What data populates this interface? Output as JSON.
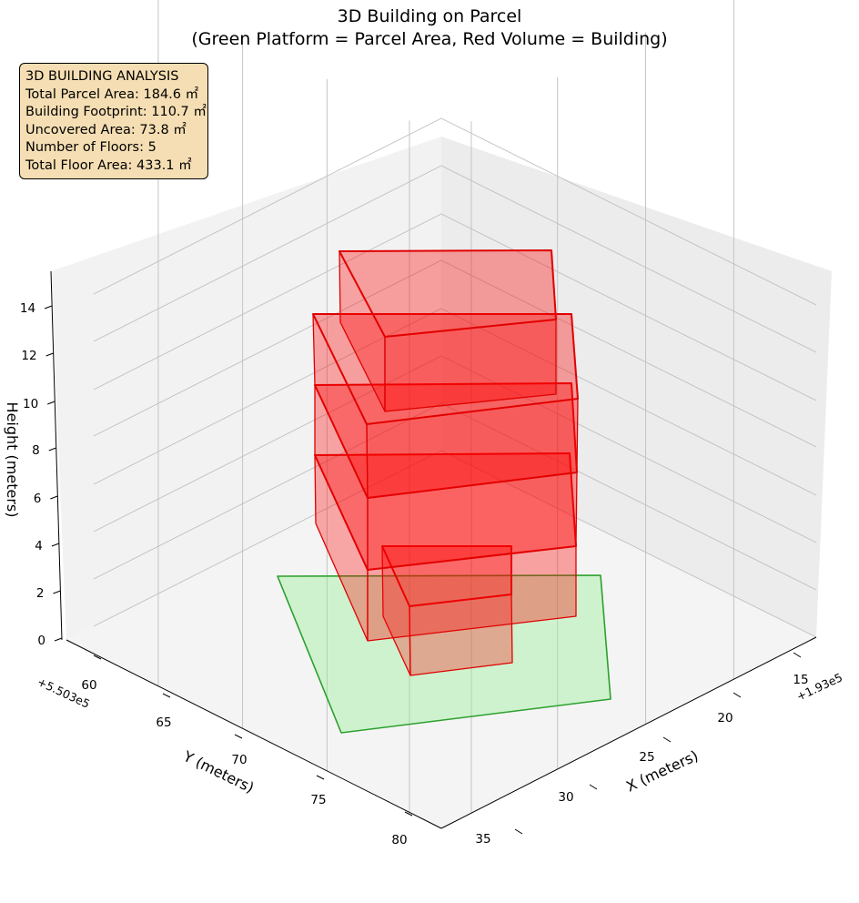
{
  "title_line1": "3D Building on Parcel",
  "title_line2": "(Green Platform = Parcel Area, Red Volume = Building)",
  "info_box": {
    "heading": "3D BUILDING ANALYSIS",
    "lines": [
      "Total Parcel Area: 184.6 ㎡",
      "Building Footprint: 110.7 ㎡",
      "Uncovered Area: 73.8 ㎡",
      "Number of Floors: 5",
      "Total Floor Area: 433.1 ㎡"
    ]
  },
  "colors": {
    "parcel_fill": "#90ee90",
    "parcel_edge": "#2ca02c",
    "building_fill": "#ff0000",
    "building_edge": "#e00000",
    "pane": "#f2f2f2",
    "grid": "#bfbfbf",
    "info_box_bg": "#f5deb3"
  },
  "chart_data": {
    "type": "3d-polygons",
    "xlabel": "X (meters)",
    "ylabel": "Y (meters)",
    "zlabel": "Height (meters)",
    "x_offset_label": "+1.93e5",
    "y_offset_label": "+5.503e5",
    "x_ticks": [
      "15",
      "20",
      "25",
      "30",
      "35"
    ],
    "y_ticks": [
      "60",
      "65",
      "70",
      "75",
      "80"
    ],
    "z_ticks": [
      "0",
      "2",
      "4",
      "6",
      "8",
      "10",
      "12",
      "14"
    ],
    "parcel_area": 184.6,
    "building_footprint": 110.7,
    "uncovered_area": 73.8,
    "floors": 5,
    "total_floor_area": 433.1
  }
}
